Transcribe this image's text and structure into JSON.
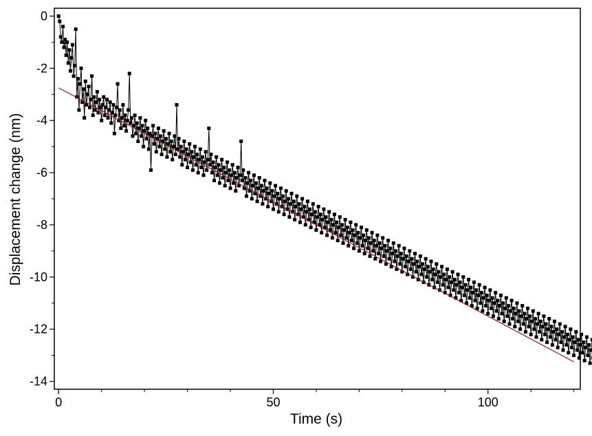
{
  "chart_data": {
    "type": "scatter",
    "title": "",
    "xlabel": "Time (s)",
    "ylabel": "Displacement change (nm)",
    "xlim": [
      -1,
      121.5
    ],
    "ylim": [
      -14.3,
      0.3
    ],
    "x_ticks": [
      0,
      50,
      100
    ],
    "x_tick_labels": [
      "0",
      "50",
      "100"
    ],
    "x_minor_step": 10,
    "y_ticks": [
      0,
      -2,
      -4,
      -6,
      -8,
      -10,
      -12,
      -14
    ],
    "y_tick_labels": [
      "0",
      "-2",
      "-4",
      "-6",
      "-8",
      "-10",
      "-12",
      "-14"
    ],
    "grid": false,
    "legend": "none",
    "series": [
      {
        "style": "line-with-square-markers",
        "color": "#000000",
        "x_start": 0,
        "x_step": 0.25,
        "y": [
          0.0,
          -0.2,
          -0.8,
          -1.0,
          -0.4,
          -1.2,
          -0.9,
          -1.5,
          -1.0,
          -1.8,
          -1.3,
          -2.1,
          -1.6,
          -1.1,
          -2.3,
          -1.9,
          -0.5,
          -3.1,
          -2.4,
          -3.6,
          -2.6,
          -2.0,
          -3.3,
          -2.8,
          -3.9,
          -2.5,
          -3.4,
          -3.0,
          -2.7,
          -3.5,
          -3.2,
          -2.3,
          -3.8,
          -3.1,
          -3.6,
          -3.3,
          -2.9,
          -3.7,
          -3.2,
          -3.5,
          -4.0,
          -3.4,
          -3.1,
          -3.8,
          -3.5,
          -3.2,
          -3.9,
          -3.6,
          -3.3,
          -4.1,
          -3.7,
          -3.4,
          -4.5,
          -3.8,
          -3.5,
          -2.6,
          -4.0,
          -3.6,
          -4.3,
          -3.9,
          -3.4,
          -4.2,
          -3.8,
          -4.4,
          -4.0,
          -3.6,
          -2.2,
          -4.1,
          -3.9,
          -4.6,
          -4.2,
          -3.8,
          -4.5,
          -4.1,
          -4.8,
          -4.3,
          -3.9,
          -4.6,
          -4.2,
          -5.0,
          -4.4,
          -4.0,
          -4.7,
          -4.3,
          -5.1,
          -4.5,
          -5.9,
          -4.6,
          -4.2,
          -4.9,
          -4.5,
          -5.2,
          -4.7,
          -4.3,
          -5.0,
          -4.6,
          -5.3,
          -4.8,
          -4.4,
          -5.1,
          -4.7,
          -5.4,
          -4.9,
          -4.5,
          -5.2,
          -4.8,
          -5.5,
          -5.0,
          -4.6,
          -5.3,
          -3.4,
          -5.1,
          -4.7,
          -5.4,
          -5.0,
          -5.7,
          -5.2,
          -4.8,
          -5.5,
          -5.1,
          -5.8,
          -5.3,
          -4.9,
          -5.6,
          -5.2,
          -5.9,
          -5.4,
          -5.0,
          -5.7,
          -5.3,
          -6.0,
          -5.5,
          -5.1,
          -5.8,
          -5.4,
          -6.1,
          -5.6,
          -5.2,
          -5.9,
          -5.5,
          -4.3,
          -5.7,
          -5.3,
          -6.0,
          -5.6,
          -6.3,
          -5.8,
          -5.4,
          -6.1,
          -5.7,
          -6.4,
          -5.9,
          -5.5,
          -6.2,
          -5.8,
          -6.5,
          -6.0,
          -5.6,
          -6.3,
          -5.9,
          -6.6,
          -6.1,
          -5.7,
          -6.4,
          -6.0,
          -6.7,
          -6.2,
          -5.8,
          -6.5,
          -6.1,
          -4.8,
          -6.3,
          -5.9,
          -6.6,
          -6.2,
          -6.9,
          -6.4,
          -6.0,
          -6.7,
          -6.3,
          -7.0,
          -6.5,
          -6.1,
          -6.8,
          -6.4,
          -7.1,
          -6.6,
          -6.2,
          -6.9,
          -6.5,
          -7.2,
          -6.7,
          -6.3,
          -7.0,
          -6.6,
          -7.3,
          -6.8,
          -6.4,
          -7.1,
          -6.7,
          -7.4,
          -6.9,
          -6.5,
          -7.2,
          -6.8,
          -7.5,
          -7.0,
          -6.6,
          -7.3,
          -6.9,
          -7.6,
          -7.1,
          -6.7,
          -7.4,
          -7.0,
          -7.7,
          -7.2,
          -6.8,
          -7.5,
          -7.1,
          -7.8,
          -7.3,
          -6.9,
          -7.6,
          -7.2,
          -7.9,
          -7.4,
          -7.0,
          -7.7,
          -7.3,
          -8.0,
          -7.5,
          -7.1,
          -7.8,
          -7.4,
          -8.1,
          -7.6,
          -7.2,
          -7.9,
          -7.5,
          -8.2,
          -7.7,
          -7.3,
          -8.0,
          -7.6,
          -8.3,
          -7.8,
          -7.4,
          -8.1,
          -7.7,
          -8.4,
          -7.9,
          -7.5,
          -8.2,
          -7.8,
          -8.5,
          -8.0,
          -7.6,
          -8.3,
          -7.9,
          -8.6,
          -8.1,
          -7.7,
          -8.4,
          -8.0,
          -8.7,
          -8.2,
          -7.8,
          -8.5,
          -8.1,
          -8.8,
          -8.3,
          -7.9,
          -8.6,
          -8.2,
          -8.9,
          -8.4,
          -8.0,
          -8.7,
          -8.3,
          -9.0,
          -8.5,
          -8.1,
          -8.8,
          -8.4,
          -9.1,
          -8.6,
          -8.2,
          -8.9,
          -8.5,
          -9.2,
          -8.7,
          -8.3,
          -9.0,
          -8.6,
          -9.3,
          -8.8,
          -8.4,
          -9.1,
          -8.7,
          -9.4,
          -8.9,
          -8.5,
          -9.2,
          -8.8,
          -9.5,
          -9.0,
          -8.6,
          -9.3,
          -8.9,
          -9.6,
          -9.1,
          -8.7,
          -9.4,
          -9.0,
          -9.7,
          -9.2,
          -8.8,
          -9.5,
          -9.1,
          -9.8,
          -9.3,
          -8.9,
          -9.6,
          -9.2,
          -9.9,
          -9.4,
          -9.0,
          -9.7,
          -9.3,
          -10.0,
          -9.5,
          -9.1,
          -9.8,
          -9.4,
          -10.1,
          -9.6,
          -9.2,
          -9.9,
          -9.5,
          -10.2,
          -9.7,
          -9.3,
          -10.0,
          -9.6,
          -10.3,
          -9.8,
          -9.4,
          -10.1,
          -9.7,
          -10.4,
          -9.9,
          -9.5,
          -10.2,
          -9.8,
          -10.5,
          -10.0,
          -9.6,
          -10.3,
          -9.9,
          -10.6,
          -10.1,
          -9.7,
          -10.4,
          -10.0,
          -10.7,
          -10.2,
          -9.8,
          -10.5,
          -10.1,
          -10.8,
          -10.3,
          -9.9,
          -10.6,
          -10.2,
          -10.9,
          -10.4,
          -10.0,
          -10.7,
          -10.3,
          -11.0,
          -10.5,
          -10.1,
          -10.8,
          -10.4,
          -11.1,
          -10.6,
          -10.2,
          -10.9,
          -10.5,
          -11.2,
          -10.7,
          -10.3,
          -11.0,
          -10.6,
          -11.3,
          -10.8,
          -10.4,
          -11.1,
          -10.7,
          -11.4,
          -10.9,
          -10.5,
          -11.2,
          -10.8,
          -11.5,
          -11.0,
          -10.6,
          -11.3,
          -10.9,
          -11.6,
          -11.1,
          -10.7,
          -11.4,
          -11.0,
          -11.7,
          -11.2,
          -10.8,
          -11.5,
          -11.1,
          -11.8,
          -11.3,
          -10.9,
          -11.6,
          -11.2,
          -11.9,
          -11.4,
          -11.0,
          -11.7,
          -11.3,
          -12.0,
          -11.5,
          -11.1,
          -11.8,
          -11.4,
          -12.1,
          -11.6,
          -11.2,
          -11.9,
          -11.5,
          -12.2,
          -11.7,
          -11.3,
          -12.0,
          -11.6,
          -12.3,
          -11.8,
          -11.4,
          -12.1,
          -11.7,
          -12.4,
          -11.9,
          -11.5,
          -12.2,
          -11.8,
          -12.5,
          -12.0,
          -11.6,
          -12.3,
          -11.9,
          -12.6,
          -12.1,
          -11.7,
          -12.4,
          -12.0,
          -12.7,
          -12.2,
          -11.8,
          -12.5,
          -12.1,
          -12.8,
          -12.3,
          -11.9,
          -12.6,
          -12.2,
          -12.9,
          -12.4,
          -12.0,
          -12.7,
          -12.3,
          -13.0,
          -12.5,
          -12.1,
          -12.8,
          -12.4,
          -13.1,
          -12.6,
          -12.2,
          -12.9,
          -12.5,
          -13.2,
          -12.7,
          -12.3,
          -13.0,
          -12.6,
          -13.3,
          -12.8,
          -12.4,
          -13.1,
          -12.7,
          -13.4,
          -12.9,
          -12.5,
          -13.2,
          -12.8,
          -13.5,
          -13.0,
          -12.6,
          -13.3,
          -12.9,
          -13.6,
          -13.1,
          -12.7,
          -13.4,
          -13.0
        ]
      },
      {
        "style": "line",
        "name": "",
        "color": "#8b1a1a",
        "x": [
          0,
          120
        ],
        "y": [
          -2.75,
          -13.25
        ]
      }
    ]
  }
}
